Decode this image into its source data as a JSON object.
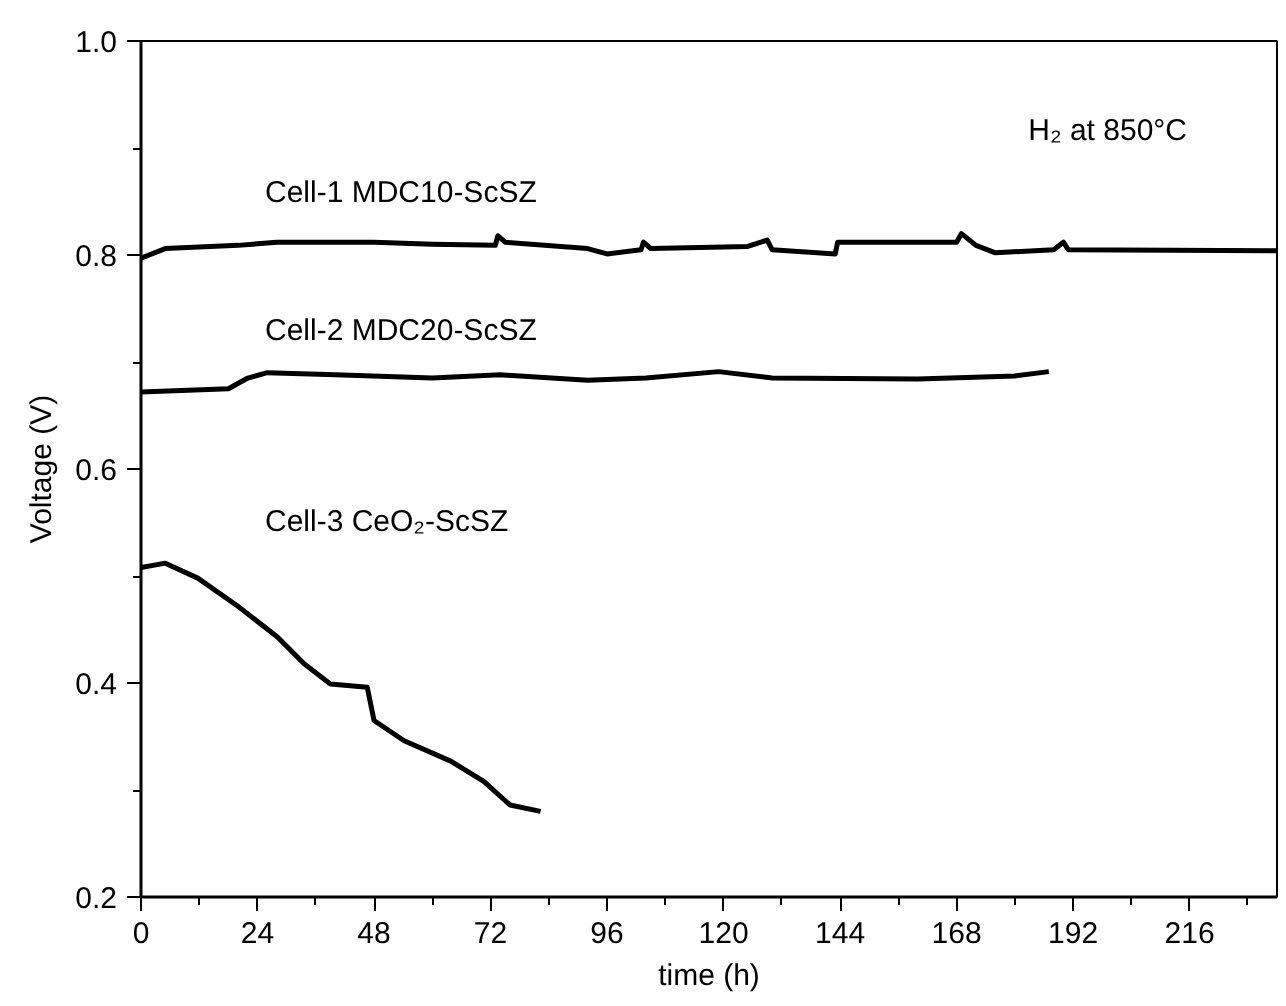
{
  "chart_data": {
    "type": "line",
    "xlabel": "time (h)",
    "ylabel": "Voltage (V)",
    "xlim": [
      0,
      234
    ],
    "ylim": [
      0.2,
      1.0
    ],
    "xticks": [
      0,
      24,
      48,
      72,
      96,
      120,
      144,
      168,
      192,
      216
    ],
    "yticks": [
      {
        "value": 0.2,
        "label": "0.2"
      },
      {
        "value": 0.4,
        "label": "0.4"
      },
      {
        "value": 0.6,
        "label": "0.6"
      },
      {
        "value": 0.8,
        "label": "0.8"
      },
      {
        "value": 1.0,
        "label": "1.0"
      }
    ],
    "grid": false,
    "legend": false,
    "marker": "none",
    "line_style": "solid",
    "annotations": [
      "H₂ at 850°C"
    ],
    "series": [
      {
        "name": "Cell-1 MDC10-ScSZ",
        "color": "#000000",
        "x": [
          0,
          5,
          20,
          28,
          48,
          60,
          73,
          73.5,
          75,
          92,
          96,
          103,
          103.5,
          105,
          125,
          129,
          130,
          143,
          143.5,
          168,
          169,
          172,
          176,
          188,
          190,
          191,
          234
        ],
        "values": [
          0.797,
          0.806,
          0.809,
          0.812,
          0.812,
          0.81,
          0.809,
          0.818,
          0.812,
          0.806,
          0.801,
          0.805,
          0.812,
          0.806,
          0.808,
          0.814,
          0.805,
          0.801,
          0.812,
          0.812,
          0.82,
          0.809,
          0.802,
          0.805,
          0.812,
          0.805,
          0.804
        ]
      },
      {
        "name": "Cell-2 MDC20-ScSZ",
        "color": "#000000",
        "x": [
          0,
          18,
          22,
          26,
          40,
          60,
          74,
          92,
          104,
          119,
          130,
          160,
          180,
          187
        ],
        "values": [
          0.672,
          0.675,
          0.685,
          0.69,
          0.688,
          0.685,
          0.688,
          0.683,
          0.685,
          0.691,
          0.685,
          0.684,
          0.687,
          0.691
        ]
      },
      {
        "name": "Cell-3 CeO₂-ScSZ",
        "color": "#000000",
        "x": [
          0,
          5,
          11.7,
          19.9,
          28.1,
          33.6,
          39,
          46.6,
          48,
          54.2,
          63.8,
          70.6,
          76,
          82.3
        ],
        "values": [
          0.508,
          0.512,
          0.498,
          0.472,
          0.443,
          0.418,
          0.399,
          0.396,
          0.365,
          0.346,
          0.327,
          0.308,
          0.286,
          0.28
        ]
      }
    ]
  }
}
